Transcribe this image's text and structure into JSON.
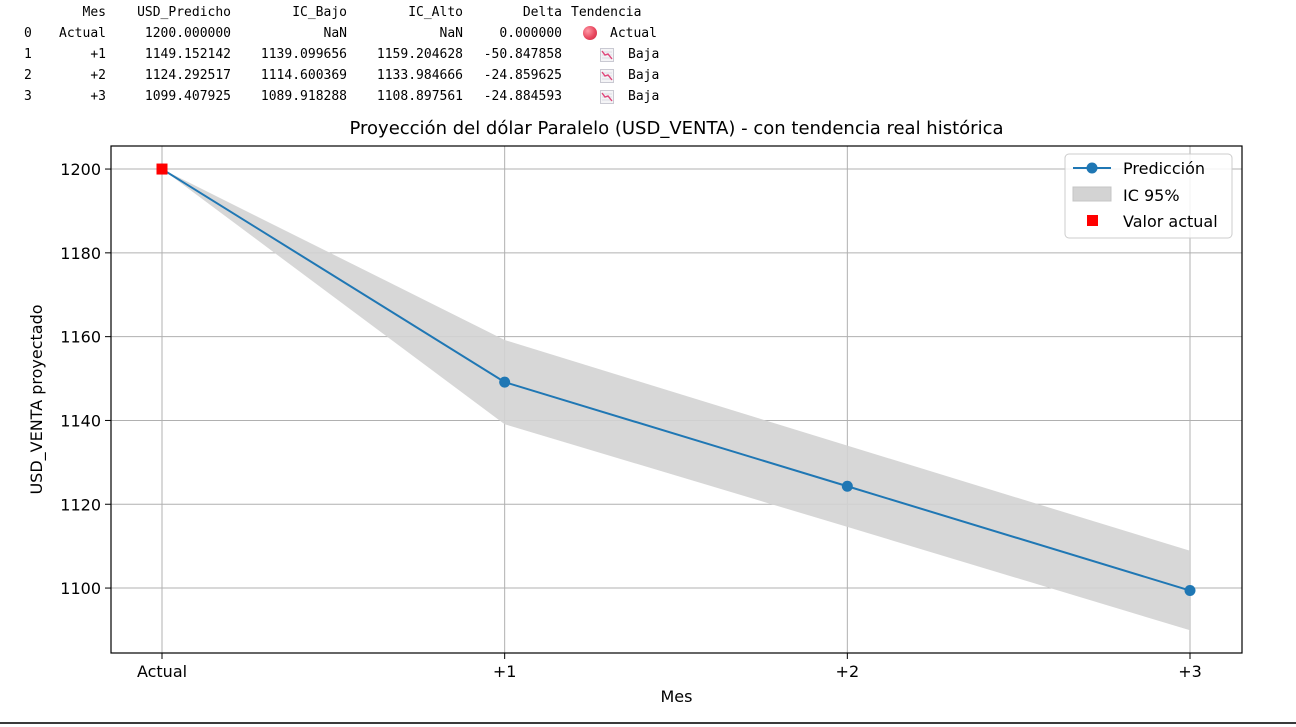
{
  "table": {
    "headers": [
      "",
      "Mes",
      "USD_Predicho",
      "IC_Bajo",
      "IC_Alto",
      "Delta",
      "Tendencia"
    ],
    "rows": [
      {
        "index": "0",
        "mes": "Actual",
        "usd_predicho": "1200.000000",
        "ic_bajo": "NaN",
        "ic_alto": "NaN",
        "delta": "0.000000",
        "tendencia_icon": "red-circle-icon",
        "tendencia": "Actual"
      },
      {
        "index": "1",
        "mes": "+1",
        "usd_predicho": "1149.152142",
        "ic_bajo": "1139.099656",
        "ic_alto": "1159.204628",
        "delta": "-50.847858",
        "tendencia_icon": "chart-decreasing-icon",
        "tendencia": "Baja"
      },
      {
        "index": "2",
        "mes": "+2",
        "usd_predicho": "1124.292517",
        "ic_bajo": "1114.600369",
        "ic_alto": "1133.984666",
        "delta": "-24.859625",
        "tendencia_icon": "chart-decreasing-icon",
        "tendencia": "Baja"
      },
      {
        "index": "3",
        "mes": "+3",
        "usd_predicho": "1099.407925",
        "ic_bajo": "1089.918288",
        "ic_alto": "1108.897561",
        "delta": "-24.884593",
        "tendencia_icon": "chart-decreasing-icon",
        "tendencia": "Baja"
      }
    ]
  },
  "chart_data": {
    "type": "line",
    "title": "Proyección del dólar Paralelo (USD_VENTA) - con tendencia real histórica",
    "xlabel": "Mes",
    "ylabel": "USD_VENTA proyectado",
    "categories": [
      "Actual",
      "+1",
      "+2",
      "+3"
    ],
    "ylim": [
      1084.5,
      1205.5
    ],
    "yticks": [
      1100,
      1120,
      1140,
      1160,
      1180,
      1200
    ],
    "grid": true,
    "legend_position": "top-right",
    "series": [
      {
        "name": "Predicción",
        "values": [
          1200.0,
          1149.152142,
          1124.292517,
          1099.407925
        ],
        "color": "#1f77b4",
        "marker": "circle"
      }
    ],
    "band": {
      "name": "IC 95%",
      "lower": [
        1200.0,
        1139.099656,
        1114.600369,
        1089.918288
      ],
      "upper": [
        1200.0,
        1159.204628,
        1133.984666,
        1108.897561
      ],
      "color": "#d3d3d3"
    },
    "highlight": {
      "name": "Valor actual",
      "x": "Actual",
      "y": 1200.0,
      "color": "#ff0000",
      "marker": "square"
    }
  }
}
